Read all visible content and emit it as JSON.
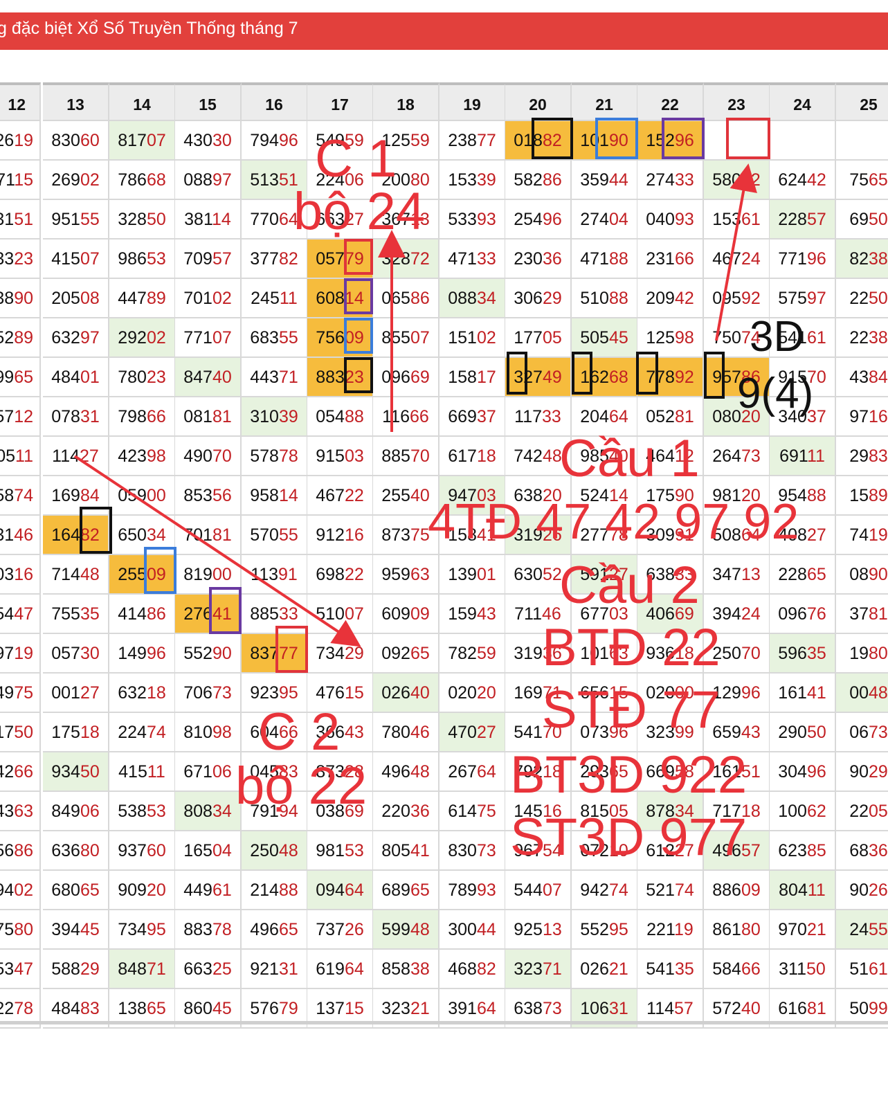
{
  "banner": {
    "title": "g đặc biệt Xổ Số Truyền Thống tháng 7"
  },
  "table": {
    "columns": [
      "12",
      "13",
      "14",
      "15",
      "16",
      "17",
      "18",
      "19",
      "20",
      "21",
      "22",
      "23",
      "24",
      "25"
    ],
    "rows": [
      [
        "2619",
        "83060",
        "81707",
        "43030",
        "79496",
        "54959",
        "12559",
        "23877",
        "01882",
        "10190",
        "15296",
        "",
        "",
        ""
      ],
      [
        "7115",
        "26902",
        "78668",
        "08897",
        "51351",
        "22406",
        "20080",
        "15339",
        "58286",
        "35944",
        "27433",
        "58032",
        "62442",
        "7565"
      ],
      [
        "3151",
        "95155",
        "32850",
        "38114",
        "77064",
        "66327",
        "36713",
        "53393",
        "25496",
        "27404",
        "04093",
        "15361",
        "22857",
        "6950"
      ],
      [
        "3323",
        "41507",
        "98653",
        "70957",
        "37782",
        "05779",
        "32872",
        "47133",
        "23036",
        "47188",
        "23166",
        "46724",
        "77196",
        "8238"
      ],
      [
        "3890",
        "20508",
        "44789",
        "70102",
        "24511",
        "60814",
        "06586",
        "08834",
        "30629",
        "51088",
        "20942",
        "09592",
        "57597",
        "2250"
      ],
      [
        "5289",
        "63297",
        "29202",
        "77107",
        "68355",
        "75609",
        "85507",
        "15102",
        "17705",
        "50545",
        "12598",
        "75074",
        "54161",
        "2238"
      ],
      [
        "9965",
        "48401",
        "78023",
        "84740",
        "44371",
        "88323",
        "09669",
        "15817",
        "32749",
        "16268",
        "77892",
        "95786",
        "91570",
        "4384"
      ],
      [
        "5712",
        "07831",
        "79866",
        "08181",
        "31039",
        "05488",
        "11666",
        "66937",
        "11733",
        "20464",
        "05281",
        "08020",
        "34037",
        "9716"
      ],
      [
        "0511",
        "11427",
        "42398",
        "49070",
        "57878",
        "91503",
        "88570",
        "61718",
        "74248",
        "98540",
        "46412",
        "26473",
        "69111",
        "2983"
      ],
      [
        "5874",
        "16984",
        "05900",
        "85356",
        "95814",
        "46722",
        "25540",
        "94703",
        "63820",
        "52414",
        "17590",
        "98120",
        "95488",
        "1589"
      ],
      [
        "3146",
        "16482",
        "65034",
        "70181",
        "57055",
        "91216",
        "87375",
        "15841",
        "31926",
        "27778",
        "30991",
        "50864",
        "40827",
        "7419"
      ],
      [
        "0316",
        "71448",
        "25509",
        "81900",
        "11391",
        "69822",
        "95963",
        "13901",
        "63052",
        "59127",
        "63833",
        "34713",
        "22865",
        "0890"
      ],
      [
        "5447",
        "75535",
        "41486",
        "27641",
        "88533",
        "51007",
        "60909",
        "15943",
        "71146",
        "67703",
        "40669",
        "39424",
        "09676",
        "3781"
      ],
      [
        "9719",
        "05730",
        "14996",
        "55290",
        "83777",
        "73429",
        "09265",
        "78259",
        "31936",
        "10163",
        "93618",
        "25070",
        "59635",
        "1980"
      ],
      [
        "4975",
        "00127",
        "63218",
        "70673",
        "92395",
        "47615",
        "02640",
        "02020",
        "16971",
        "65615",
        "02000",
        "12996",
        "16141",
        "0048"
      ],
      [
        "1750",
        "17518",
        "22474",
        "81098",
        "60466",
        "36643",
        "78046",
        "47027",
        "54170",
        "07396",
        "32399",
        "65943",
        "29050",
        "0673"
      ],
      [
        "4266",
        "93450",
        "41511",
        "67106",
        "04583",
        "87328",
        "49648",
        "26764",
        "79218",
        "29365",
        "66958",
        "16151",
        "30496",
        "9029"
      ],
      [
        "4363",
        "84906",
        "53853",
        "80834",
        "79194",
        "03869",
        "22036",
        "61475",
        "14516",
        "81505",
        "87834",
        "71718",
        "10062",
        "2205"
      ],
      [
        "5686",
        "63680",
        "93760",
        "16504",
        "25048",
        "98153",
        "80541",
        "83073",
        "96754",
        "07210",
        "61227",
        "49657",
        "62385",
        "6836"
      ],
      [
        "9402",
        "68065",
        "90920",
        "44961",
        "21488",
        "09464",
        "68965",
        "78993",
        "54407",
        "94274",
        "52174",
        "88609",
        "80411",
        "9026"
      ],
      [
        "7580",
        "39445",
        "73495",
        "88378",
        "49665",
        "73726",
        "59948",
        "30044",
        "92513",
        "55295",
        "22119",
        "86180",
        "97021",
        "2455"
      ],
      [
        "5347",
        "58829",
        "84871",
        "66325",
        "92131",
        "61964",
        "85838",
        "46882",
        "32371",
        "02621",
        "54135",
        "58466",
        "31150",
        "5161"
      ],
      [
        "2278",
        "48483",
        "13865",
        "86045",
        "57679",
        "13715",
        "32321",
        "39164",
        "63873",
        "10631",
        "11457",
        "57240",
        "61681",
        "5099"
      ]
    ],
    "green_cells": [
      [
        0,
        2
      ],
      [
        1,
        4
      ],
      [
        1,
        11
      ],
      [
        2,
        12
      ],
      [
        3,
        6
      ],
      [
        3,
        13
      ],
      [
        4,
        7
      ],
      [
        5,
        2
      ],
      [
        5,
        9
      ],
      [
        6,
        3
      ],
      [
        7,
        4
      ],
      [
        7,
        11
      ],
      [
        8,
        12
      ],
      [
        9,
        7
      ],
      [
        10,
        8
      ],
      [
        11,
        9
      ],
      [
        12,
        10
      ],
      [
        13,
        12
      ],
      [
        14,
        6
      ],
      [
        14,
        13
      ],
      [
        15,
        7
      ],
      [
        16,
        1
      ],
      [
        17,
        3
      ],
      [
        17,
        10
      ],
      [
        18,
        4
      ],
      [
        18,
        11
      ],
      [
        19,
        5
      ],
      [
        19,
        12
      ],
      [
        20,
        6
      ],
      [
        20,
        13
      ],
      [
        21,
        2
      ],
      [
        21,
        8
      ],
      [
        22,
        9
      ]
    ],
    "highlighted_cells": [
      [
        0,
        8
      ],
      [
        0,
        9
      ],
      [
        0,
        10
      ],
      [
        3,
        5
      ],
      [
        4,
        5
      ],
      [
        5,
        5
      ],
      [
        6,
        5
      ],
      [
        6,
        8
      ],
      [
        6,
        9
      ],
      [
        6,
        10
      ],
      [
        6,
        11
      ],
      [
        10,
        1
      ],
      [
        11,
        2
      ],
      [
        12,
        3
      ],
      [
        13,
        4
      ]
    ]
  },
  "annotations": {
    "c1": "C 1",
    "bo24": "bộ 24",
    "label3d": "3D",
    "nine4": "9(4)",
    "cau1": "Cầu 1",
    "td4": "4TĐ 47 42 97 92",
    "cau2": "Cầu 2",
    "btd": "BTĐ 22",
    "std": "STĐ 77",
    "bt3d": "BT3D 922",
    "st3d": "ST3D 977",
    "c2": "C 2",
    "bo22": "bộ 22"
  },
  "colors": {
    "banner": "#e2403c",
    "highlight": "#f6bc3d",
    "green": "#e7f3df",
    "tail_digits": "#c21f23",
    "annotation": "#e8333a",
    "box_black": "#111111",
    "box_blue": "#3b7ddb",
    "box_purple": "#6a3aa1",
    "box_red": "#e0343b"
  }
}
